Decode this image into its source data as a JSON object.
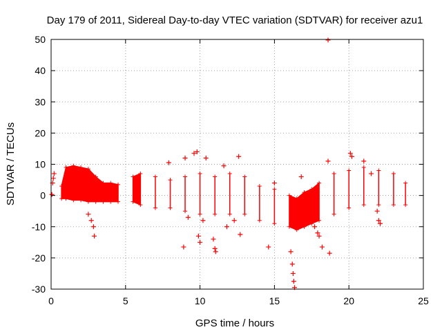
{
  "chart_data": {
    "type": "scatter",
    "title": "Day 179 of 2011, Sidereal Day-to-day VTEC variation (SDTVAR) for receiver azu1",
    "xlabel": "GPS time / hours",
    "ylabel": "SDTVAR / TECUs",
    "xlim": [
      0,
      25
    ],
    "ylim": [
      -30,
      50
    ],
    "xticks": [
      "0",
      "5",
      "10",
      "15",
      "20",
      "25"
    ],
    "yticks": [
      "-30",
      "-20",
      "-10",
      "0",
      "10",
      "20",
      "30",
      "40",
      "50"
    ],
    "grid": true,
    "marker": "+",
    "color": "#ff0000",
    "series": [
      {
        "name": "SDTVAR",
        "band": [
          {
            "x": 0.7,
            "low": -1,
            "high": 3
          },
          {
            "x": 1.0,
            "low": -1,
            "high": 9
          },
          {
            "x": 1.5,
            "low": -1.5,
            "high": 9.5
          },
          {
            "x": 2.0,
            "low": -1.5,
            "high": 9
          },
          {
            "x": 2.5,
            "low": -2,
            "high": 8.5
          },
          {
            "x": 3.0,
            "low": -2,
            "high": 6
          },
          {
            "x": 3.5,
            "low": -2,
            "high": 4
          },
          {
            "x": 4.0,
            "low": -2,
            "high": 4
          },
          {
            "x": 4.5,
            "low": -2,
            "high": 3.5
          },
          {
            "x": 5.5,
            "low": -2,
            "high": 6
          },
          {
            "x": 6.0,
            "low": -3,
            "high": 7
          },
          {
            "x": 7.0,
            "low": -4,
            "high": 6
          },
          {
            "x": 8.0,
            "low": -4,
            "high": 5
          },
          {
            "x": 9.0,
            "low": -5,
            "high": 6
          },
          {
            "x": 10.0,
            "low": -6,
            "high": 7
          },
          {
            "x": 11.0,
            "low": -6,
            "high": 6
          },
          {
            "x": 12.0,
            "low": -6,
            "high": 7
          },
          {
            "x": 13.0,
            "low": -6,
            "high": 6
          },
          {
            "x": 14.0,
            "low": -8,
            "high": 3
          },
          {
            "x": 15.0,
            "low": -9,
            "high": 2
          },
          {
            "x": 16.0,
            "low": -10,
            "high": 0
          },
          {
            "x": 16.5,
            "low": -11,
            "high": -1
          },
          {
            "x": 17.0,
            "low": -10,
            "high": 1
          },
          {
            "x": 17.5,
            "low": -9,
            "high": 2
          },
          {
            "x": 18.0,
            "low": -8,
            "high": 4
          },
          {
            "x": 19.0,
            "low": -6,
            "high": 7
          },
          {
            "x": 20.0,
            "low": -4,
            "high": 8
          },
          {
            "x": 21.0,
            "low": -3,
            "high": 9
          },
          {
            "x": 22.0,
            "low": -3,
            "high": 8
          },
          {
            "x": 23.0,
            "low": -3,
            "high": 7
          },
          {
            "x": 23.8,
            "low": -3,
            "high": 4
          }
        ],
        "points": [
          [
            0.05,
            0.3
          ],
          [
            0.1,
            4
          ],
          [
            0.15,
            5.5
          ],
          [
            0.2,
            7
          ],
          [
            2.5,
            -6
          ],
          [
            2.7,
            -8
          ],
          [
            2.85,
            -10
          ],
          [
            2.9,
            -13
          ],
          [
            7.9,
            10.5
          ],
          [
            8.9,
            -16.5
          ],
          [
            9.0,
            12
          ],
          [
            9.6,
            13.5
          ],
          [
            9.8,
            14
          ],
          [
            9.2,
            -7
          ],
          [
            9.9,
            -13
          ],
          [
            10.0,
            -15
          ],
          [
            10.4,
            12
          ],
          [
            10.2,
            -8
          ],
          [
            10.9,
            -14
          ],
          [
            11.0,
            -17
          ],
          [
            11.05,
            -18
          ],
          [
            11.6,
            9.5
          ],
          [
            11.8,
            -10
          ],
          [
            12.3,
            -8
          ],
          [
            12.6,
            12.5
          ],
          [
            12.7,
            -12.5
          ],
          [
            14.6,
            -16.5
          ],
          [
            15.0,
            4
          ],
          [
            16.1,
            -18
          ],
          [
            16.2,
            -22
          ],
          [
            16.25,
            -25
          ],
          [
            16.3,
            -27.5
          ],
          [
            16.35,
            -29.5
          ],
          [
            16.8,
            6
          ],
          [
            17.7,
            -10
          ],
          [
            17.9,
            -12
          ],
          [
            18.0,
            -13
          ],
          [
            18.2,
            -16.5
          ],
          [
            18.6,
            11
          ],
          [
            18.7,
            -18.5
          ],
          [
            18.6,
            49.8
          ],
          [
            20.1,
            13.5
          ],
          [
            20.2,
            12.5
          ],
          [
            21.0,
            11
          ],
          [
            21.5,
            7
          ],
          [
            21.9,
            -5
          ],
          [
            22.0,
            -8
          ],
          [
            22.1,
            -9
          ]
        ]
      }
    ]
  }
}
